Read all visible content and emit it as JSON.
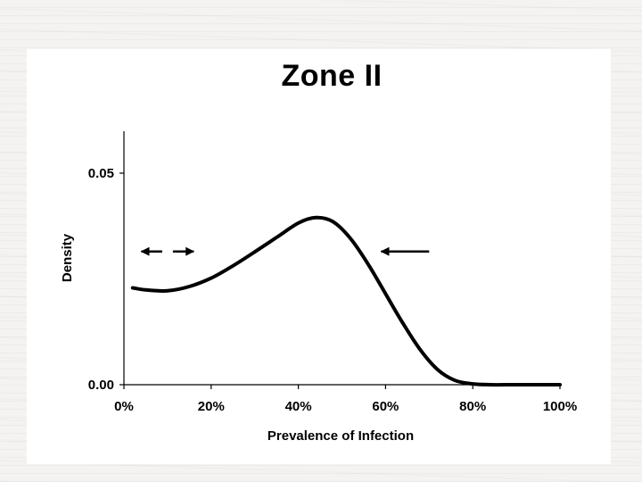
{
  "chart_data": {
    "type": "line",
    "title": "Zone II",
    "xlabel": "Prevalence of Infection",
    "ylabel": "Density",
    "xlim": [
      0,
      100
    ],
    "ylim": [
      0,
      0.05
    ],
    "x_ticks": [
      "0%",
      "20%",
      "40%",
      "60%",
      "80%",
      "100%"
    ],
    "y_ticks": [
      "0.00",
      "0.05"
    ],
    "series": [
      {
        "x": [
          2,
          5,
          10,
          15,
          20,
          25,
          30,
          35,
          40,
          44,
          48,
          52,
          56,
          60,
          64,
          68,
          72,
          76,
          80,
          84,
          90,
          100
        ],
        "y": [
          0.0229,
          0.0224,
          0.0222,
          0.0232,
          0.0252,
          0.0281,
          0.0314,
          0.0348,
          0.0382,
          0.0395,
          0.0385,
          0.0345,
          0.0285,
          0.0215,
          0.0145,
          0.0082,
          0.0035,
          0.001,
          0.0002,
          0.0,
          0.0,
          0.0
        ]
      }
    ],
    "annotations": [
      {
        "type": "double-arrow",
        "x_from": 4,
        "x_to": 16,
        "y": 0.0315
      },
      {
        "type": "arrow",
        "direction": "left",
        "x_from": 70,
        "x_to": 59,
        "y": 0.0315
      }
    ],
    "grid": false
  }
}
